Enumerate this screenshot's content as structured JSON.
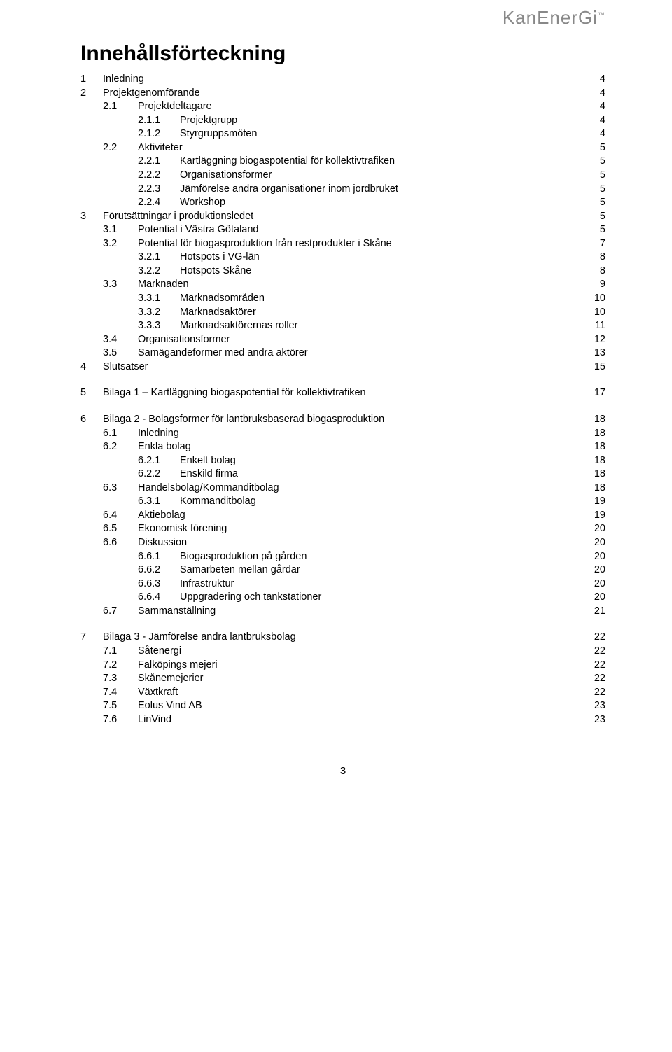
{
  "logo_text": "KanEnerGi",
  "title": "Innehållsförteckning",
  "page_number": "3",
  "font": {
    "family": "Verdana",
    "title_size_pt": 22,
    "body_size_pt": 11
  },
  "colors": {
    "text": "#000000",
    "logo": "#888888",
    "background": "#ffffff"
  },
  "toc": [
    {
      "gap": false,
      "num": "1",
      "label": "Inledning",
      "page": "4",
      "lvl": 0
    },
    {
      "num": "2",
      "label": "Projektgenomförande",
      "page": "4",
      "lvl": 0
    },
    {
      "num": "2.1",
      "label": "Projektdeltagare",
      "page": "4",
      "lvl": 1
    },
    {
      "num": "2.1.1",
      "label": "Projektgrupp",
      "page": "4",
      "lvl": 2
    },
    {
      "num": "2.1.2",
      "label": "Styrgruppsmöten",
      "page": "4",
      "lvl": 2
    },
    {
      "num": "2.2",
      "label": "Aktiviteter",
      "page": "5",
      "lvl": 1
    },
    {
      "num": "2.2.1",
      "label": "Kartläggning biogaspotential för kollektivtrafiken",
      "page": "5",
      "lvl": 2
    },
    {
      "num": "2.2.2",
      "label": "Organisationsformer",
      "page": "5",
      "lvl": 2
    },
    {
      "num": "2.2.3",
      "label": "Jämförelse andra organisationer inom jordbruket",
      "page": "5",
      "lvl": 2
    },
    {
      "num": "2.2.4",
      "label": "Workshop",
      "page": "5",
      "lvl": 2
    },
    {
      "num": "3",
      "label": "Förutsättningar i produktionsledet",
      "page": "5",
      "lvl": 0
    },
    {
      "num": "3.1",
      "label": "Potential i Västra Götaland",
      "page": "5",
      "lvl": 1
    },
    {
      "num": "3.2",
      "label": "Potential för biogasproduktion från restprodukter i Skåne",
      "page": "7",
      "lvl": 1
    },
    {
      "num": "3.2.1",
      "label": "Hotspots i VG-län",
      "page": "8",
      "lvl": 2
    },
    {
      "num": "3.2.2",
      "label": "Hotspots Skåne",
      "page": "8",
      "lvl": 2
    },
    {
      "num": "3.3",
      "label": "Marknaden",
      "page": "9",
      "lvl": 1
    },
    {
      "num": "3.3.1",
      "label": "Marknadsområden",
      "page": "10",
      "lvl": 2
    },
    {
      "num": "3.3.2",
      "label": "Marknadsaktörer",
      "page": "10",
      "lvl": 2
    },
    {
      "num": "3.3.3",
      "label": "Marknadsaktörernas roller",
      "page": "11",
      "lvl": 2
    },
    {
      "num": "3.4",
      "label": "Organisationsformer",
      "page": "12",
      "lvl": 1
    },
    {
      "num": "3.5",
      "label": "Samägandeformer med andra aktörer",
      "page": "13",
      "lvl": 1
    },
    {
      "num": "4",
      "label": "Slutsatser",
      "page": "15",
      "lvl": 0
    },
    {
      "gap": true,
      "num": "5",
      "label": "Bilaga 1 – Kartläggning biogaspotential för kollektivtrafiken",
      "page": "17",
      "lvl": 0
    },
    {
      "gap": true,
      "num": "6",
      "label": "Bilaga 2 - Bolagsformer för lantbruksbaserad biogasproduktion",
      "page": "18",
      "lvl": 0
    },
    {
      "num": "6.1",
      "label": "Inledning",
      "page": "18",
      "lvl": 1
    },
    {
      "num": "6.2",
      "label": "Enkla bolag",
      "page": "18",
      "lvl": 1
    },
    {
      "num": "6.2.1",
      "label": "Enkelt bolag",
      "page": "18",
      "lvl": 2
    },
    {
      "num": "6.2.2",
      "label": "Enskild firma",
      "page": "18",
      "lvl": 2
    },
    {
      "num": "6.3",
      "label": "Handelsbolag/Kommanditbolag",
      "page": "18",
      "lvl": 1
    },
    {
      "num": "6.3.1",
      "label": "Kommanditbolag",
      "page": "19",
      "lvl": 2
    },
    {
      "num": "6.4",
      "label": "Aktiebolag",
      "page": "19",
      "lvl": 1
    },
    {
      "num": "6.5",
      "label": "Ekonomisk förening",
      "page": "20",
      "lvl": 1
    },
    {
      "num": "6.6",
      "label": "Diskussion",
      "page": "20",
      "lvl": 1
    },
    {
      "num": "6.6.1",
      "label": "Biogasproduktion på gården",
      "page": "20",
      "lvl": 2
    },
    {
      "num": "6.6.2",
      "label": "Samarbeten mellan gårdar",
      "page": "20",
      "lvl": 2
    },
    {
      "num": "6.6.3",
      "label": "Infrastruktur",
      "page": "20",
      "lvl": 2
    },
    {
      "num": "6.6.4",
      "label": "Uppgradering och tankstationer",
      "page": "20",
      "lvl": 2
    },
    {
      "num": "6.7",
      "label": "Sammanställning",
      "page": "21",
      "lvl": 1
    },
    {
      "gap": true,
      "num": "7",
      "label": "Bilaga 3 - Jämförelse andra lantbruksbolag",
      "page": "22",
      "lvl": 0
    },
    {
      "num": "7.1",
      "label": "Såtenergi",
      "page": "22",
      "lvl": 1
    },
    {
      "num": "7.2",
      "label": "Falköpings mejeri",
      "page": "22",
      "lvl": 1
    },
    {
      "num": "7.3",
      "label": "Skånemejerier",
      "page": "22",
      "lvl": 1
    },
    {
      "num": "7.4",
      "label": "Växtkraft",
      "page": "22",
      "lvl": 1
    },
    {
      "num": "7.5",
      "label": "Eolus Vind AB",
      "page": "23",
      "lvl": 1
    },
    {
      "num": "7.6",
      "label": "LinVind",
      "page": "23",
      "lvl": 1
    }
  ]
}
